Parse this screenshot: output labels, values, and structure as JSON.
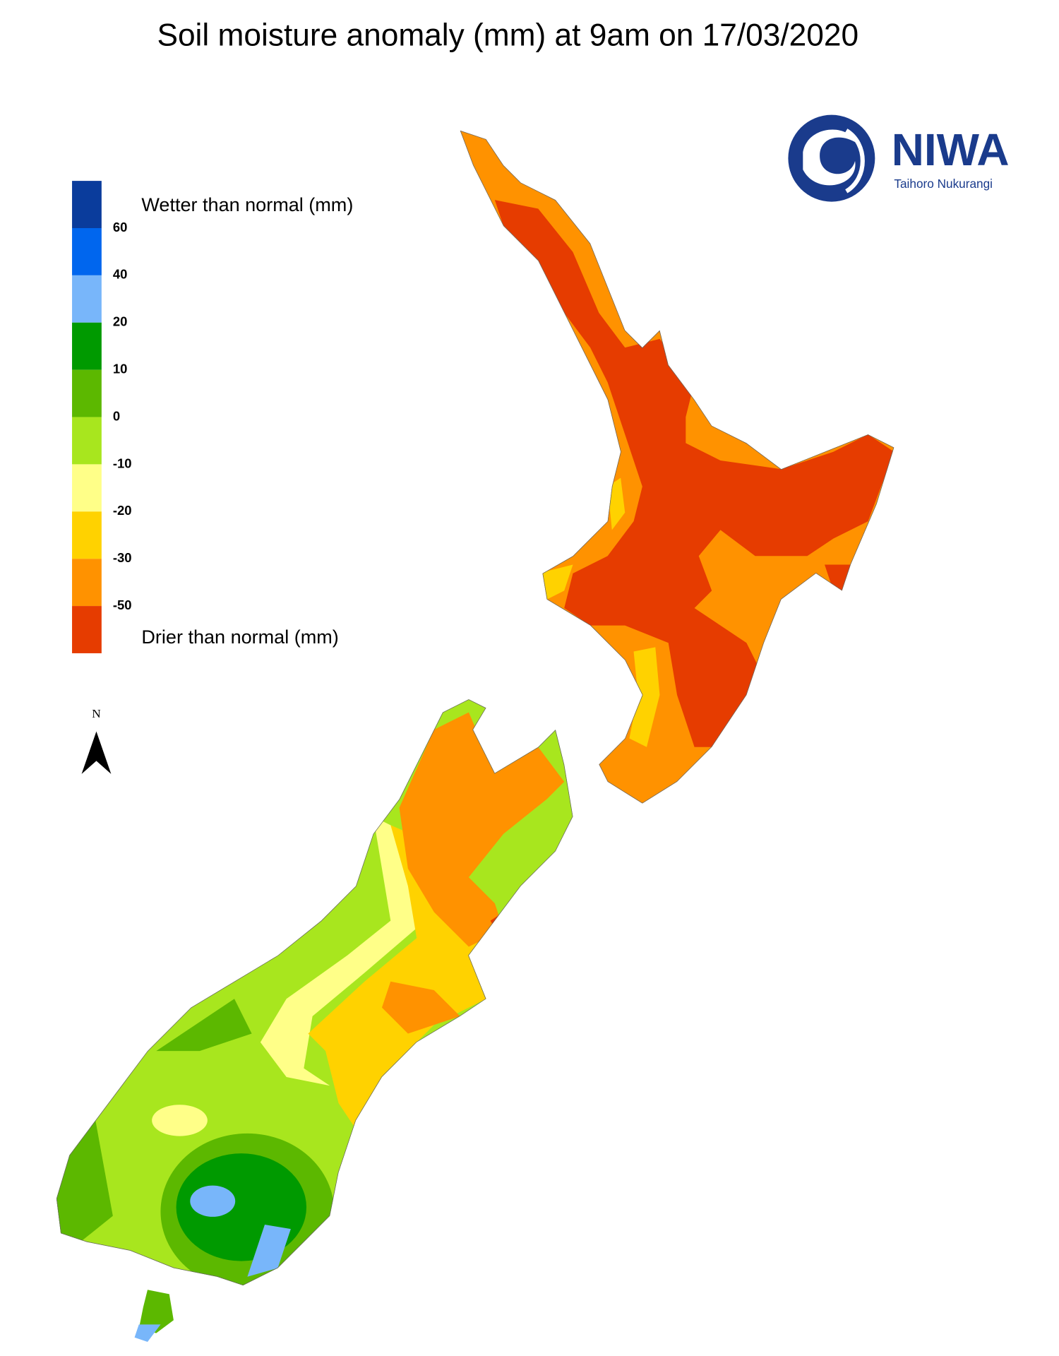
{
  "title": "Soil moisture anomaly (mm) at 9am on 17/03/2020",
  "legend": {
    "top_label": "Wetter than normal (mm)",
    "bottom_label": "Drier than normal (mm)",
    "colors": [
      "#0a3c9c",
      "#0066ee",
      "#78b6fa",
      "#009a00",
      "#5cb800",
      "#a8e61e",
      "#ffff88",
      "#ffd200",
      "#ff9200",
      "#e63c00"
    ],
    "ticks": [
      60,
      40,
      20,
      10,
      0,
      -10,
      -20,
      -30,
      -50
    ]
  },
  "logo": {
    "name": "NIWA",
    "subtitle": "Taihoro Nukurangi"
  },
  "north_label": "N"
}
